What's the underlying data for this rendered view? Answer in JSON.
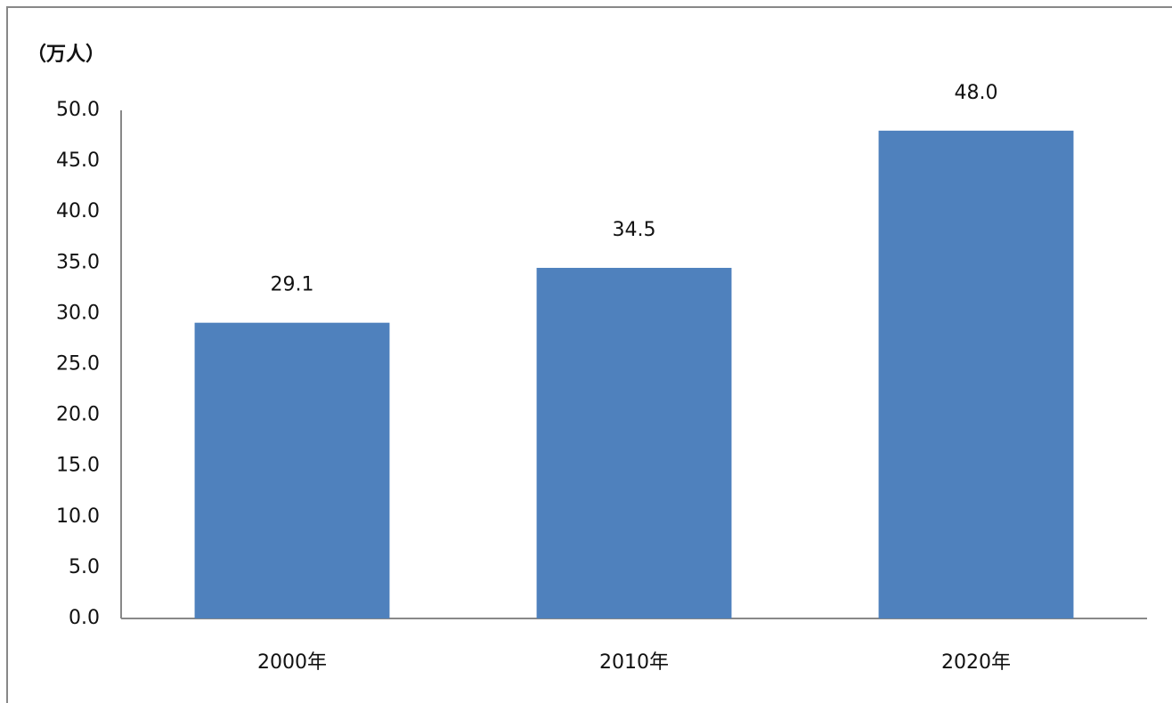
{
  "chart_data": {
    "type": "bar",
    "y_label": "（万人）",
    "categories": [
      "2000年",
      "2010年",
      "2020年"
    ],
    "values": [
      29.1,
      34.5,
      48.0
    ],
    "value_labels": [
      "29.1",
      "34.5",
      "48.0"
    ],
    "color": "#4f81bd",
    "ylim": [
      0,
      50
    ],
    "yticks": [
      {
        "value": 0,
        "label": "0.0"
      },
      {
        "value": 5,
        "label": "5.0"
      },
      {
        "value": 10,
        "label": "10.0"
      },
      {
        "value": 15,
        "label": "15.0"
      },
      {
        "value": 20,
        "label": "20.0"
      },
      {
        "value": 25,
        "label": "25.0"
      },
      {
        "value": 30,
        "label": "30.0"
      },
      {
        "value": 35,
        "label": "35.0"
      },
      {
        "value": 40,
        "label": "40.0"
      },
      {
        "value": 45,
        "label": "45.0"
      },
      {
        "value": 50,
        "label": "50.0"
      }
    ],
    "grid": false
  }
}
